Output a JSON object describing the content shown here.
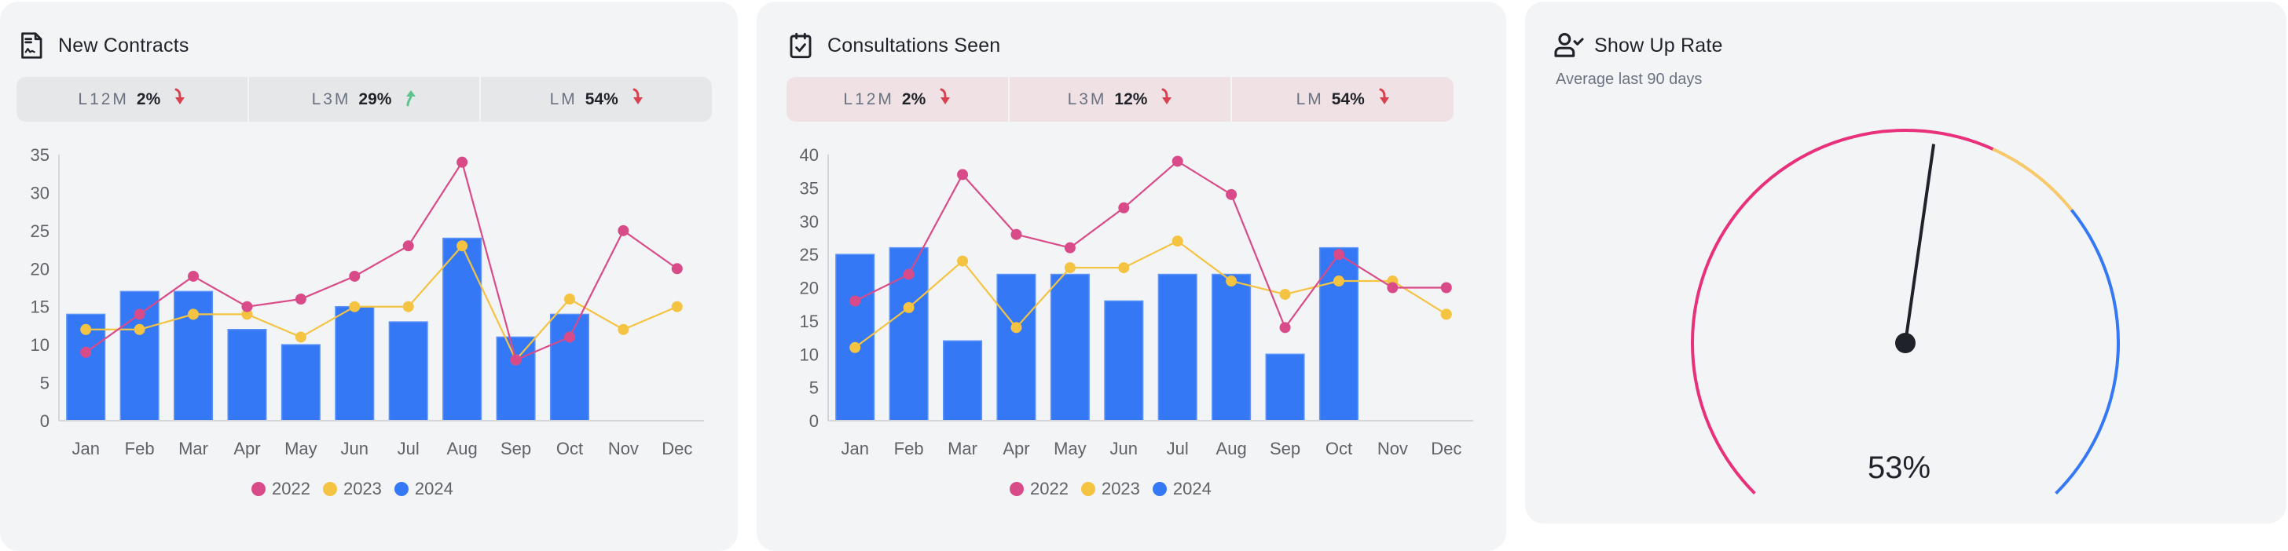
{
  "panels": {
    "contracts": {
      "title": "New Contracts",
      "icon": "signed-document-icon",
      "stats": [
        {
          "label": "L12M",
          "value": "2%",
          "trend": "down"
        },
        {
          "label": "L3M",
          "value": "29%",
          "trend": "up"
        },
        {
          "label": "LM",
          "value": "54%",
          "trend": "down"
        }
      ]
    },
    "consultations": {
      "title": "Consultations Seen",
      "icon": "calendar-check-icon",
      "stats": [
        {
          "label": "L12M",
          "value": "2%",
          "trend": "down"
        },
        {
          "label": "L3M",
          "value": "12%",
          "trend": "down"
        },
        {
          "label": "LM",
          "value": "54%",
          "trend": "down"
        }
      ]
    },
    "showup": {
      "title": "Show Up Rate",
      "icon": "user-check-icon",
      "subtitle": "Average last 90 days",
      "value_label": "53%"
    }
  },
  "colors": {
    "s2022": "#d94b88",
    "s2023": "#f4c342",
    "s2024": "#3578f6",
    "trend_up": "#5cc48c",
    "trend_down": "#d8424f",
    "gauge_low": "#e8317a",
    "gauge_mid": "#f7c96b",
    "gauge_high": "#3578f6"
  },
  "chart_data": [
    {
      "type": "bar",
      "title": "New Contracts",
      "categories": [
        "Jan",
        "Feb",
        "Mar",
        "Apr",
        "May",
        "Jun",
        "Jul",
        "Aug",
        "Sep",
        "Oct",
        "Nov",
        "Dec"
      ],
      "ylim": [
        0,
        35
      ],
      "yticks": [
        0,
        5,
        10,
        15,
        20,
        25,
        30,
        35
      ],
      "legend_position": "bottom-center",
      "series": [
        {
          "name": "2022",
          "kind": "line",
          "values": [
            9,
            14,
            19,
            15,
            16,
            19,
            23,
            34,
            8,
            11,
            25,
            20
          ]
        },
        {
          "name": "2023",
          "kind": "line",
          "values": [
            12,
            12,
            14,
            14,
            11,
            15,
            15,
            23,
            8,
            16,
            12,
            15
          ]
        },
        {
          "name": "2024",
          "kind": "bar",
          "values": [
            14,
            17,
            17,
            12,
            10,
            15,
            13,
            24,
            11,
            14,
            null,
            null
          ]
        }
      ]
    },
    {
      "type": "bar",
      "title": "Consultations Seen",
      "categories": [
        "Jan",
        "Feb",
        "Mar",
        "Apr",
        "May",
        "Jun",
        "Jul",
        "Aug",
        "Sep",
        "Oct",
        "Nov",
        "Dec"
      ],
      "ylim": [
        0,
        40
      ],
      "yticks": [
        0,
        5,
        10,
        15,
        20,
        25,
        30,
        35,
        40
      ],
      "legend_position": "bottom-center",
      "series": [
        {
          "name": "2022",
          "kind": "line",
          "values": [
            18,
            22,
            37,
            28,
            26,
            32,
            39,
            34,
            14,
            25,
            20,
            20
          ]
        },
        {
          "name": "2023",
          "kind": "line",
          "values": [
            11,
            17,
            24,
            14,
            23,
            23,
            27,
            21,
            19,
            21,
            21,
            16
          ]
        },
        {
          "name": "2024",
          "kind": "bar",
          "values": [
            25,
            26,
            12,
            22,
            22,
            18,
            22,
            22,
            10,
            26,
            null,
            null
          ]
        }
      ]
    },
    {
      "type": "gauge",
      "title": "Show Up Rate",
      "subtitle": "Average last 90 days",
      "value": 0.53,
      "value_label": "53%",
      "range": [
        0,
        1
      ],
      "bands": [
        {
          "from": 0,
          "to": 0.59,
          "color": "#e8317a"
        },
        {
          "from": 0.59,
          "to": 0.69,
          "color": "#f7c96b"
        },
        {
          "from": 0.69,
          "to": 1,
          "color": "#3578f6"
        }
      ]
    }
  ]
}
